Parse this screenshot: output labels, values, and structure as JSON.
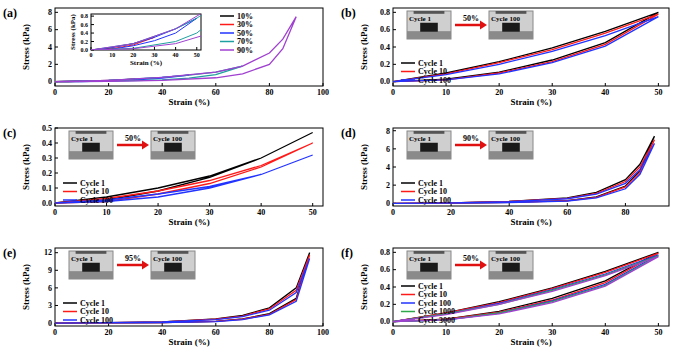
{
  "chart_data": [
    {
      "type": "line",
      "title": "(a)",
      "x_label": "Strain (%)",
      "y_label": "Stress (kPa)",
      "xlim": [
        0,
        100
      ],
      "ylim": [
        -0.5,
        8.5
      ],
      "xticks": [
        0,
        20,
        40,
        60,
        80,
        100
      ],
      "yticks": [
        0,
        2,
        4,
        6,
        8
      ],
      "legend": "upper right",
      "series": [
        {
          "name": "10%",
          "color": "#000000",
          "x": [
            0,
            5,
            10,
            5,
            0
          ],
          "values": [
            0,
            0.02,
            0.06,
            0.02,
            0
          ]
        },
        {
          "name": "30%",
          "color": "#ff1a1a",
          "x": [
            0,
            10,
            20,
            30,
            20,
            10,
            0
          ],
          "values": [
            0,
            0.06,
            0.15,
            0.3,
            0.12,
            0.03,
            0
          ]
        },
        {
          "name": "50%",
          "color": "#2233ff",
          "x": [
            0,
            10,
            20,
            30,
            40,
            50,
            40,
            30,
            20,
            10,
            0
          ],
          "values": [
            0,
            0.06,
            0.15,
            0.3,
            0.5,
            0.75,
            0.4,
            0.22,
            0.1,
            0.02,
            0
          ]
        },
        {
          "name": "70%",
          "color": "#1fa0a0",
          "x": [
            0,
            20,
            40,
            50,
            60,
            70,
            60,
            50,
            40,
            20,
            0
          ],
          "values": [
            0,
            0.15,
            0.5,
            0.75,
            1.1,
            1.8,
            0.8,
            0.4,
            0.2,
            0.04,
            0
          ]
        },
        {
          "name": "90%",
          "color": "#a040d0",
          "x": [
            0,
            20,
            40,
            60,
            70,
            80,
            85,
            90,
            85,
            80,
            70,
            60,
            40,
            20,
            0
          ],
          "values": [
            0,
            0.15,
            0.5,
            1.1,
            1.8,
            3.3,
            4.9,
            7.5,
            3.8,
            2.0,
            0.9,
            0.45,
            0.15,
            0.03,
            0
          ]
        }
      ],
      "inset": {
        "x_label": "Strain (%)",
        "y_label": "Stress (kPa)",
        "xlim": [
          0,
          52
        ],
        "ylim": [
          0,
          0.85
        ],
        "xticks": [
          0,
          10,
          20,
          30,
          40,
          50
        ],
        "yticks": [
          {
            "value": 0,
            "label": "0.0"
          },
          {
            "value": 0.2,
            "label": "0.2"
          },
          {
            "value": 0.4,
            "label": "0.4"
          },
          {
            "value": 0.6,
            "label": "0.6"
          },
          {
            "value": 0.8,
            "label": "0.8"
          }
        ]
      }
    },
    {
      "type": "line",
      "title": "(b)",
      "x_label": "Strain (%)",
      "y_label": "Stress (kPa)",
      "xlim": [
        0,
        52
      ],
      "ylim": [
        -0.05,
        0.85
      ],
      "xticks": [
        0,
        10,
        20,
        30,
        40,
        50
      ],
      "yticks": [
        {
          "value": 0,
          "label": "0.0"
        },
        {
          "value": 0.2,
          "label": "0.2"
        },
        {
          "value": 0.4,
          "label": "0.4"
        },
        {
          "value": 0.6,
          "label": "0.6"
        },
        {
          "value": 0.8,
          "label": "0.8"
        }
      ],
      "legend": "lower left",
      "annotations": [
        "Cycle 1",
        "50%",
        "Cycle 100"
      ],
      "series": [
        {
          "name": "Cycle 1",
          "color": "#000000",
          "x": [
            0,
            10,
            20,
            30,
            40,
            50,
            40,
            30,
            20,
            10,
            0
          ],
          "values": [
            0,
            0.1,
            0.23,
            0.39,
            0.58,
            0.8,
            0.45,
            0.25,
            0.11,
            0.03,
            0
          ]
        },
        {
          "name": "Cycle 10",
          "color": "#ff1a1a",
          "x": [
            0,
            10,
            20,
            30,
            40,
            50,
            40,
            30,
            20,
            10,
            0
          ],
          "values": [
            0,
            0.09,
            0.22,
            0.37,
            0.56,
            0.78,
            0.43,
            0.23,
            0.1,
            0.02,
            0
          ]
        },
        {
          "name": "Cycle 100",
          "color": "#2233ff",
          "x": [
            0,
            10,
            20,
            30,
            40,
            50,
            40,
            30,
            20,
            10,
            0
          ],
          "values": [
            0,
            0.08,
            0.2,
            0.35,
            0.53,
            0.75,
            0.41,
            0.22,
            0.09,
            0.02,
            0
          ]
        }
      ]
    },
    {
      "type": "line",
      "title": "(c)",
      "x_label": "Strain (%)",
      "y_label": "Stress (kPa)",
      "xlim": [
        0,
        52
      ],
      "ylim": [
        -0.02,
        0.5
      ],
      "xticks": [
        0,
        10,
        20,
        30,
        40,
        50
      ],
      "yticks": [
        {
          "value": 0,
          "label": "0.0"
        },
        {
          "value": 0.1,
          "label": "0.1"
        },
        {
          "value": 0.2,
          "label": "0.2"
        },
        {
          "value": 0.3,
          "label": "0.3"
        },
        {
          "value": 0.4,
          "label": "0.4"
        },
        {
          "value": 0.5,
          "label": "0.5"
        }
      ],
      "legend": "lower left",
      "annotations": [
        "Cycle 1",
        "50%",
        "Cycle 100"
      ],
      "series": [
        {
          "name": "Cycle 1",
          "color": "#000000",
          "x": [
            0,
            10,
            20,
            30,
            40,
            50,
            40,
            30,
            20,
            10,
            0
          ],
          "values": [
            0,
            0.04,
            0.1,
            0.18,
            0.3,
            0.47,
            0.3,
            0.17,
            0.08,
            0.02,
            0
          ]
        },
        {
          "name": "Cycle 10",
          "color": "#ff1a1a",
          "x": [
            0,
            10,
            20,
            30,
            40,
            50,
            40,
            30,
            20,
            10,
            0
          ],
          "values": [
            0,
            0.03,
            0.08,
            0.15,
            0.25,
            0.4,
            0.24,
            0.13,
            0.06,
            0.01,
            0
          ]
        },
        {
          "name": "Cycle 100",
          "color": "#2233ff",
          "x": [
            0,
            10,
            20,
            30,
            40,
            50,
            40,
            30,
            20,
            10,
            0
          ],
          "values": [
            0,
            0.02,
            0.06,
            0.11,
            0.19,
            0.32,
            0.19,
            0.1,
            0.04,
            0.01,
            0
          ]
        }
      ]
    },
    {
      "type": "line",
      "title": "(d)",
      "x_label": "Strain (%)",
      "y_label": "Stress (kPa)",
      "xlim": [
        0,
        95
      ],
      "ylim": [
        -0.3,
        8.3
      ],
      "xticks": [
        0,
        20,
        40,
        60,
        80
      ],
      "yticks": [
        0,
        2,
        4,
        6,
        8
      ],
      "legend": "lower left",
      "annotations": [
        "Cycle 1",
        "90%",
        "Cycle 100"
      ],
      "series": [
        {
          "name": "Cycle 1",
          "color": "#000000",
          "x": [
            0,
            20,
            40,
            60,
            70,
            80,
            85,
            90,
            85,
            80,
            70,
            60,
            40,
            20,
            0
          ],
          "values": [
            0,
            0.05,
            0.2,
            0.6,
            1.2,
            2.6,
            4.3,
            7.4,
            3.6,
            1.9,
            0.7,
            0.3,
            0.1,
            0.02,
            0
          ]
        },
        {
          "name": "Cycle 10",
          "color": "#ff1a1a",
          "x": [
            0,
            20,
            40,
            60,
            70,
            80,
            85,
            90,
            85,
            80,
            70,
            60,
            40,
            20,
            0
          ],
          "values": [
            0,
            0.05,
            0.2,
            0.55,
            1.1,
            2.4,
            4.0,
            7.0,
            3.4,
            1.8,
            0.65,
            0.28,
            0.09,
            0.02,
            0
          ]
        },
        {
          "name": "Cycle 100",
          "color": "#2233ff",
          "x": [
            0,
            20,
            40,
            60,
            70,
            80,
            85,
            90,
            85,
            80,
            70,
            60,
            40,
            20,
            0
          ],
          "values": [
            0,
            0.05,
            0.18,
            0.5,
            1.0,
            2.2,
            3.7,
            6.6,
            3.2,
            1.6,
            0.6,
            0.25,
            0.08,
            0.02,
            0
          ]
        }
      ]
    },
    {
      "type": "line",
      "title": "(e)",
      "x_label": "Strain (%)",
      "y_label": "Stress (kPa)",
      "xlim": [
        0,
        100
      ],
      "ylim": [
        -0.5,
        12.8
      ],
      "xticks": [
        0,
        20,
        40,
        60,
        80,
        100
      ],
      "yticks": [
        0,
        3,
        6,
        9,
        12
      ],
      "legend": "lower left",
      "annotations": [
        "Cycle 1",
        "95%",
        "Cycle 100"
      ],
      "series": [
        {
          "name": "Cycle 1",
          "color": "#000000",
          "x": [
            0,
            20,
            40,
            60,
            70,
            80,
            90,
            95,
            90,
            80,
            70,
            60,
            40,
            20,
            0
          ],
          "values": [
            0,
            0.05,
            0.2,
            0.7,
            1.3,
            2.6,
            6.0,
            12.0,
            4.2,
            1.6,
            0.7,
            0.3,
            0.1,
            0.02,
            0
          ]
        },
        {
          "name": "Cycle 10",
          "color": "#ff1a1a",
          "x": [
            0,
            20,
            40,
            60,
            70,
            80,
            90,
            95,
            90,
            80,
            70,
            60,
            40,
            20,
            0
          ],
          "values": [
            0,
            0.05,
            0.2,
            0.65,
            1.2,
            2.4,
            5.6,
            11.6,
            4.0,
            1.5,
            0.65,
            0.28,
            0.09,
            0.02,
            0
          ]
        },
        {
          "name": "Cycle 100",
          "color": "#2233ff",
          "x": [
            0,
            20,
            40,
            60,
            70,
            80,
            90,
            95,
            90,
            80,
            70,
            60,
            40,
            20,
            0
          ],
          "values": [
            0,
            0.05,
            0.18,
            0.6,
            1.1,
            2.2,
            5.2,
            11.0,
            3.7,
            1.4,
            0.6,
            0.25,
            0.08,
            0.02,
            0
          ]
        }
      ]
    },
    {
      "type": "line",
      "title": "(f)",
      "x_label": "Strain (%)",
      "y_label": "Stress (kPa)",
      "xlim": [
        0,
        52
      ],
      "ylim": [
        -0.05,
        0.85
      ],
      "xticks": [
        0,
        10,
        20,
        30,
        40,
        50
      ],
      "yticks": [
        {
          "value": 0,
          "label": "0.0"
        },
        {
          "value": 0.2,
          "label": "0.2"
        },
        {
          "value": 0.4,
          "label": "0.4"
        },
        {
          "value": 0.6,
          "label": "0.6"
        },
        {
          "value": 0.8,
          "label": "0.8"
        }
      ],
      "legend": "lower left",
      "annotations": [
        "Cycle 1",
        "50%",
        "Cycle 100"
      ],
      "series": [
        {
          "name": "Cycle 1",
          "color": "#000000",
          "x": [
            0,
            10,
            20,
            30,
            40,
            50,
            40,
            30,
            20,
            10,
            0
          ],
          "values": [
            0,
            0.1,
            0.23,
            0.39,
            0.58,
            0.8,
            0.47,
            0.27,
            0.12,
            0.03,
            0
          ]
        },
        {
          "name": "Cycle 10",
          "color": "#ff1a1a",
          "x": [
            0,
            10,
            20,
            30,
            40,
            50,
            40,
            30,
            20,
            10,
            0
          ],
          "values": [
            0,
            0.1,
            0.22,
            0.38,
            0.57,
            0.79,
            0.45,
            0.25,
            0.11,
            0.03,
            0
          ]
        },
        {
          "name": "Cycle 100",
          "color": "#2233ff",
          "x": [
            0,
            10,
            20,
            30,
            40,
            50,
            40,
            30,
            20,
            10,
            0
          ],
          "values": [
            0,
            0.09,
            0.21,
            0.37,
            0.55,
            0.77,
            0.43,
            0.24,
            0.1,
            0.02,
            0
          ]
        },
        {
          "name": "Cycle 1000",
          "color": "#2ea84a",
          "x": [
            0,
            10,
            20,
            30,
            40,
            50,
            40,
            30,
            20,
            10,
            0
          ],
          "values": [
            0,
            0.09,
            0.2,
            0.36,
            0.54,
            0.76,
            0.42,
            0.23,
            0.1,
            0.02,
            0
          ]
        },
        {
          "name": "Cycle 3000",
          "color": "#a040d0",
          "x": [
            0,
            10,
            20,
            30,
            40,
            50,
            40,
            30,
            20,
            10,
            0
          ],
          "values": [
            0,
            0.08,
            0.2,
            0.35,
            0.53,
            0.75,
            0.41,
            0.22,
            0.09,
            0.02,
            0
          ]
        }
      ]
    }
  ]
}
